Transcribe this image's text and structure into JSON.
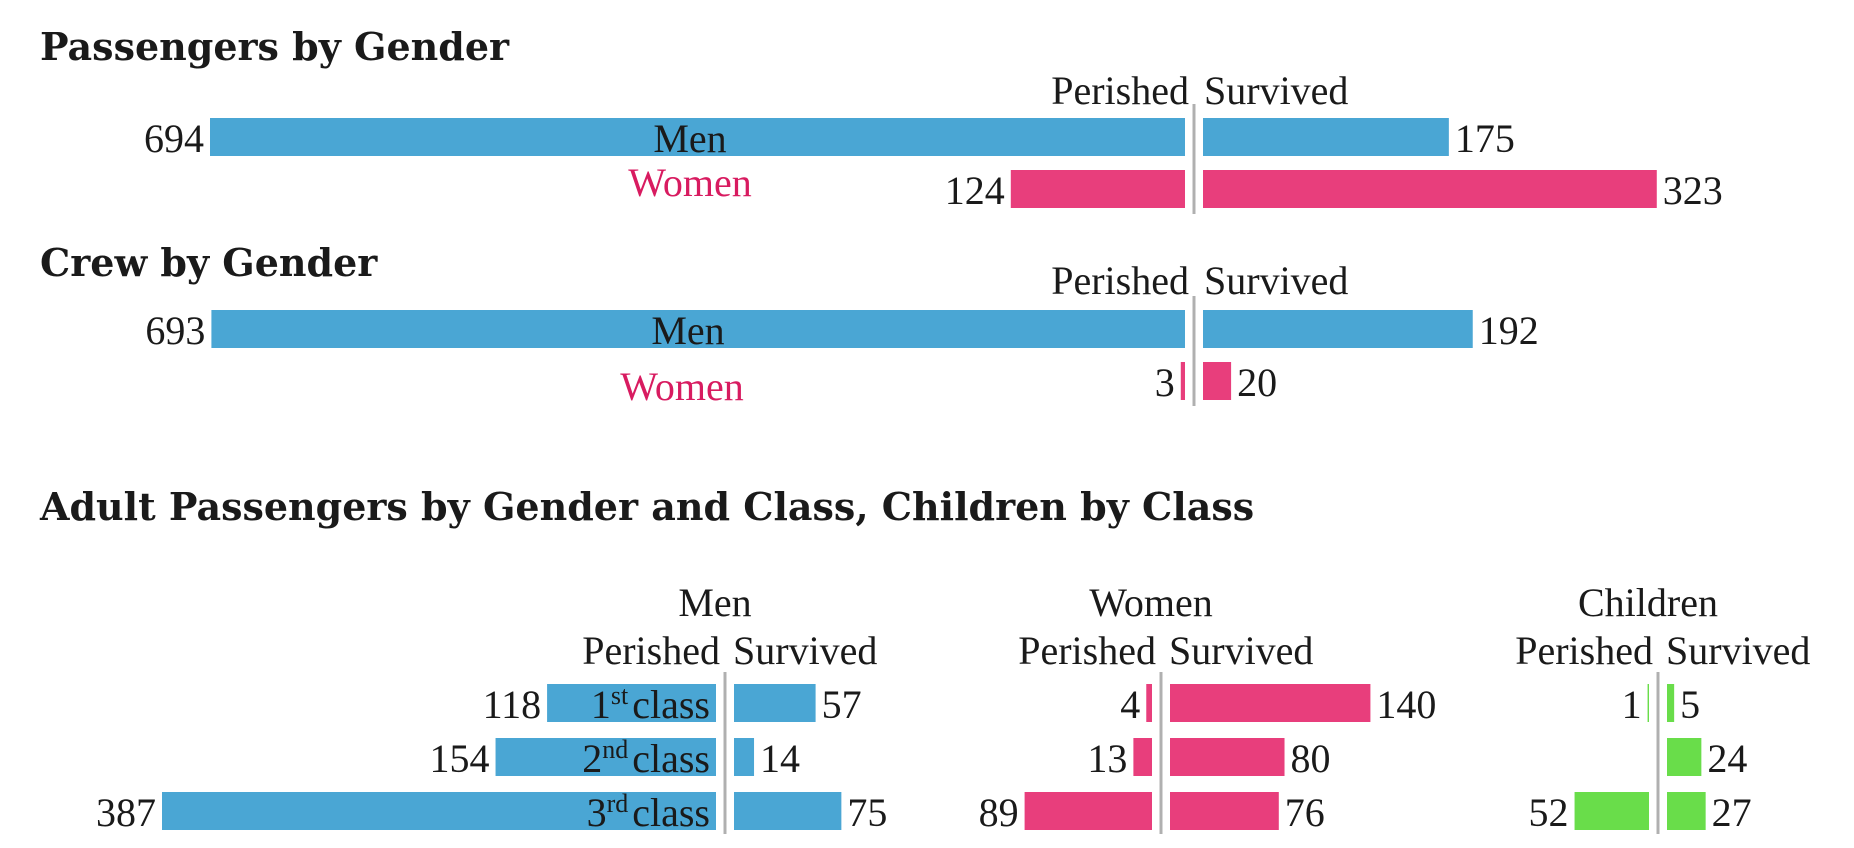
{
  "colors": {
    "men": "#4aa6d4",
    "women": "#e83e7c",
    "children": "#69dd4a",
    "women_text": "#d81b60"
  },
  "chart_data": [
    {
      "type": "bar",
      "title": "Passengers by Gender",
      "left_label": "Perished",
      "right_label": "Survived",
      "rows": [
        {
          "name": "Men",
          "perished": 694,
          "survived": 175
        },
        {
          "name": "Women",
          "perished": 124,
          "survived": 323
        }
      ]
    },
    {
      "type": "bar",
      "title": "Crew by Gender",
      "left_label": "Perished",
      "right_label": "Survived",
      "rows": [
        {
          "name": "Men",
          "perished": 693,
          "survived": 192
        },
        {
          "name": "Women",
          "perished": 3,
          "survived": 20
        }
      ]
    },
    {
      "type": "bar",
      "title": "Adult Passengers by Gender and Class, Children by Class",
      "class_labels": [
        {
          "ordinal": "1",
          "suffix": "st",
          "word": "class"
        },
        {
          "ordinal": "2",
          "suffix": "nd",
          "word": "class"
        },
        {
          "ordinal": "3",
          "suffix": "rd",
          "word": "class"
        }
      ],
      "groups": [
        {
          "name": "Men",
          "left_label": "Perished",
          "right_label": "Survived",
          "perished": [
            118,
            154,
            387
          ],
          "survived": [
            57,
            14,
            75
          ]
        },
        {
          "name": "Women",
          "left_label": "Perished",
          "right_label": "Survived",
          "perished": [
            4,
            13,
            89
          ],
          "survived": [
            140,
            80,
            76
          ]
        },
        {
          "name": "Children",
          "left_label": "Perished",
          "right_label": "Survived",
          "perished": [
            1,
            0,
            52
          ],
          "survived": [
            5,
            24,
            27
          ]
        }
      ]
    }
  ]
}
